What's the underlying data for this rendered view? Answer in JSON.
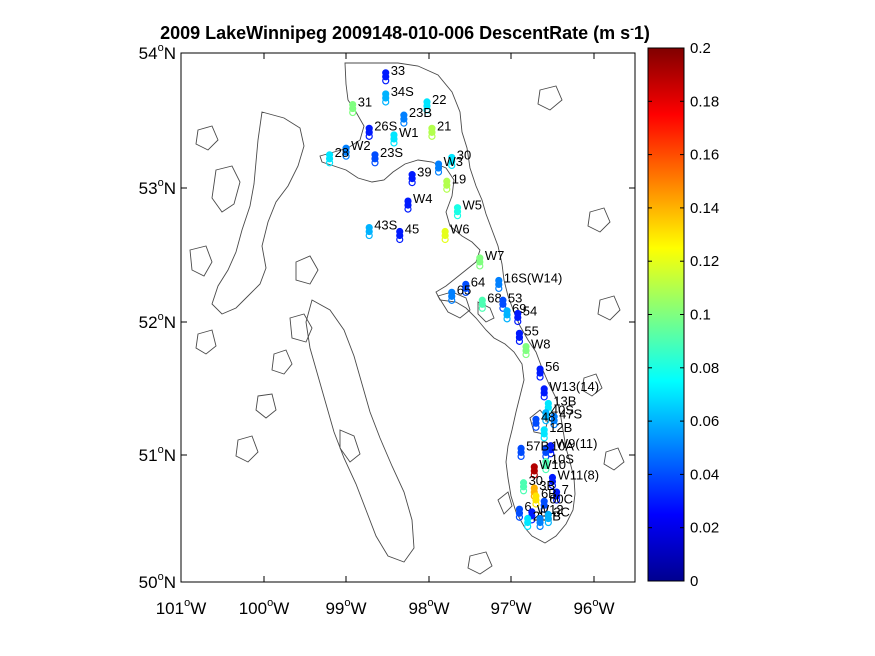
{
  "chart_data": {
    "type": "scatter",
    "title": "2009 LakeWinnipeg 2009148-010-006 DescentRate (m s",
    "title_sup": "-",
    "title_tail": "1)",
    "xlabel": "",
    "ylabel": "",
    "xlim": [
      -101,
      -95.5
    ],
    "ylim": [
      50,
      54
    ],
    "x_ticks": [
      {
        "deg": "101",
        "o": "o",
        "h": "W",
        "value": -101
      },
      {
        "deg": "100",
        "o": "o",
        "h": "W",
        "value": -100
      },
      {
        "deg": "99",
        "o": "o",
        "h": "W",
        "value": -99
      },
      {
        "deg": "98",
        "o": "o",
        "h": "W",
        "value": -98
      },
      {
        "deg": "97",
        "o": "o",
        "h": "W",
        "value": -97
      },
      {
        "deg": "96",
        "o": "o",
        "h": "W",
        "value": -96
      }
    ],
    "y_ticks": [
      {
        "deg": "50",
        "o": "o",
        "h": "N",
        "value": 50
      },
      {
        "deg": "51",
        "o": "o",
        "h": "N",
        "value": 51
      },
      {
        "deg": "52",
        "o": "o",
        "h": "N",
        "value": 52
      },
      {
        "deg": "53",
        "o": "o",
        "h": "N",
        "value": 53
      },
      {
        "deg": "54",
        "o": "o",
        "h": "N",
        "value": 54
      }
    ],
    "colorbar": {
      "min": 0,
      "max": 0.2,
      "tick_labels": [
        "0",
        "0.02",
        "0.04",
        "0.06",
        "0.08",
        "0.1",
        "0.12",
        "0.14",
        "0.16",
        "0.18",
        "0.2"
      ],
      "tick_values": [
        0,
        0.02,
        0.04,
        0.06,
        0.08,
        0.1,
        0.12,
        0.14,
        0.16,
        0.18,
        0.2
      ]
    },
    "stations": [
      {
        "label": "33",
        "lon": -98.52,
        "lat": 53.82,
        "value": 0.03
      },
      {
        "label": "34S",
        "lon": -98.52,
        "lat": 53.66,
        "value": 0.06
      },
      {
        "label": "22",
        "lon": -98.02,
        "lat": 53.6,
        "value": 0.07
      },
      {
        "label": "31",
        "lon": -98.92,
        "lat": 53.58,
        "value": 0.1
      },
      {
        "label": "23B",
        "lon": -98.3,
        "lat": 53.5,
        "value": 0.05
      },
      {
        "label": "26S",
        "lon": -98.72,
        "lat": 53.4,
        "value": 0.03
      },
      {
        "label": "21",
        "lon": -97.96,
        "lat": 53.4,
        "value": 0.11
      },
      {
        "label": "W1",
        "lon": -98.42,
        "lat": 53.35,
        "value": 0.07
      },
      {
        "label": "W2",
        "lon": -99.0,
        "lat": 53.25,
        "value": 0.05
      },
      {
        "label": "28",
        "lon": -99.2,
        "lat": 53.2,
        "value": 0.07
      },
      {
        "label": "23S",
        "lon": -98.65,
        "lat": 53.2,
        "value": 0.04
      },
      {
        "label": "30",
        "lon": -97.72,
        "lat": 53.18,
        "value": 0.07
      },
      {
        "label": "W3",
        "lon": -97.88,
        "lat": 53.13,
        "value": 0.05
      },
      {
        "label": "39",
        "lon": -98.2,
        "lat": 53.05,
        "value": 0.03
      },
      {
        "label": "19",
        "lon": -97.78,
        "lat": 53.0,
        "value": 0.11
      },
      {
        "label": "W4",
        "lon": -98.25,
        "lat": 52.85,
        "value": 0.03
      },
      {
        "label": "W5",
        "lon": -97.65,
        "lat": 52.8,
        "value": 0.08
      },
      {
        "label": "43S",
        "lon": -98.72,
        "lat": 52.65,
        "value": 0.06
      },
      {
        "label": "45",
        "lon": -98.35,
        "lat": 52.62,
        "value": 0.03
      },
      {
        "label": "W6",
        "lon": -97.8,
        "lat": 52.62,
        "value": 0.12
      },
      {
        "label": "W7",
        "lon": -97.38,
        "lat": 52.42,
        "value": 0.1
      },
      {
        "label": "16S(W14)",
        "lon": -97.15,
        "lat": 52.25,
        "value": 0.05
      },
      {
        "label": "64",
        "lon": -97.55,
        "lat": 52.22,
        "value": 0.04
      },
      {
        "label": "65",
        "lon": -97.72,
        "lat": 52.16,
        "value": 0.05
      },
      {
        "label": "68",
        "lon": -97.35,
        "lat": 52.1,
        "value": 0.09
      },
      {
        "label": "53",
        "lon": -97.1,
        "lat": 52.1,
        "value": 0.04
      },
      {
        "label": "69",
        "lon": -97.05,
        "lat": 52.02,
        "value": 0.06
      },
      {
        "label": "54",
        "lon": -96.92,
        "lat": 52.0,
        "value": 0.03
      },
      {
        "label": "55",
        "lon": -96.9,
        "lat": 51.85,
        "value": 0.03
      },
      {
        "label": "W8",
        "lon": -96.82,
        "lat": 51.75,
        "value": 0.1
      },
      {
        "label": "56",
        "lon": -96.65,
        "lat": 51.58,
        "value": 0.03
      },
      {
        "label": "W13(14)",
        "lon": -96.6,
        "lat": 51.43,
        "value": 0.03
      },
      {
        "label": "13B",
        "lon": -96.55,
        "lat": 51.32,
        "value": 0.07
      },
      {
        "label": "40S",
        "lon": -96.58,
        "lat": 51.25,
        "value": 0.06
      },
      {
        "label": "47S",
        "lon": -96.48,
        "lat": 51.22,
        "value": 0.05
      },
      {
        "label": "48",
        "lon": -96.7,
        "lat": 51.2,
        "value": 0.04
      },
      {
        "label": "12B",
        "lon": -96.6,
        "lat": 51.12,
        "value": 0.07
      },
      {
        "label": "W9(11)",
        "lon": -96.52,
        "lat": 51.0,
        "value": 0.03
      },
      {
        "label": "10A",
        "lon": -96.58,
        "lat": 50.98,
        "value": 0.04
      },
      {
        "label": "57B",
        "lon": -96.88,
        "lat": 50.98,
        "value": 0.04
      },
      {
        "label": "10S",
        "lon": -96.58,
        "lat": 50.88,
        "value": 0.09
      },
      {
        "label": "W10",
        "lon": -96.72,
        "lat": 50.84,
        "value": 0.19
      },
      {
        "label": "W11(8)",
        "lon": -96.5,
        "lat": 50.76,
        "value": 0.03
      },
      {
        "label": "30",
        "lon": -96.85,
        "lat": 50.72,
        "value": 0.09
      },
      {
        "label": "3B",
        "lon": -96.72,
        "lat": 50.68,
        "value": 0.14
      },
      {
        "label": "7",
        "lon": -96.45,
        "lat": 50.65,
        "value": 0.03
      },
      {
        "label": "6B",
        "lon": -96.7,
        "lat": 50.62,
        "value": 0.13
      },
      {
        "label": "60C",
        "lon": -96.6,
        "lat": 50.58,
        "value": 0.04
      },
      {
        "label": "6",
        "lon": -96.9,
        "lat": 50.52,
        "value": 0.04
      },
      {
        "label": "W12",
        "lon": -96.75,
        "lat": 50.5,
        "value": 0.03
      },
      {
        "label": "2B",
        "lon": -96.8,
        "lat": 50.45,
        "value": 0.07
      },
      {
        "label": "1B",
        "lon": -96.65,
        "lat": 50.45,
        "value": 0.05
      },
      {
        "label": "3C",
        "lon": -96.55,
        "lat": 50.48,
        "value": 0.06
      }
    ]
  }
}
